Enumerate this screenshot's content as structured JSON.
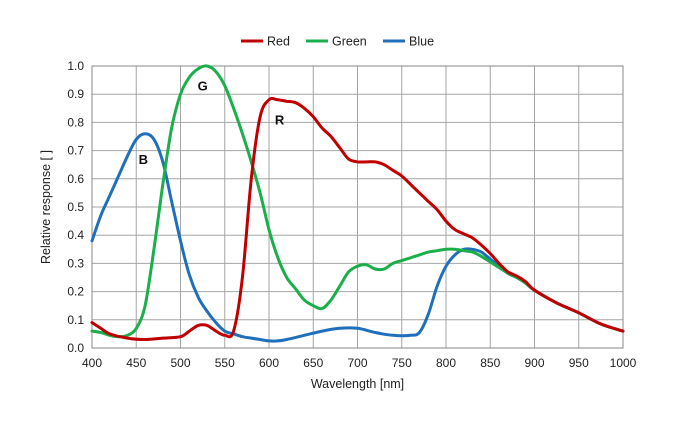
{
  "chart_data": {
    "type": "line",
    "title": "",
    "xlabel": "Wavelength [nm]",
    "ylabel": "Relative response [ ]",
    "xlim": [
      400,
      1000
    ],
    "ylim": [
      0,
      1.0
    ],
    "xticks": [
      400,
      450,
      500,
      550,
      600,
      650,
      700,
      750,
      800,
      850,
      900,
      950,
      1000
    ],
    "yticks": [
      0.0,
      0.1,
      0.2,
      0.3,
      0.4,
      0.5,
      0.6,
      0.7,
      0.8,
      0.9,
      1.0
    ],
    "xtick_labels": [
      "400",
      "450",
      "500",
      "550",
      "600",
      "650",
      "700",
      "750",
      "800",
      "850",
      "900",
      "950",
      "1000"
    ],
    "ytick_labels": [
      "0.0",
      "0.1",
      "0.2",
      "0.3",
      "0.4",
      "0.5",
      "0.6",
      "0.7",
      "0.8",
      "0.9",
      "1.0"
    ],
    "grid": true,
    "legend_position": "top-center",
    "series": [
      {
        "name": "Red",
        "color": "#c00000",
        "points": [
          [
            400,
            0.09
          ],
          [
            410,
            0.07
          ],
          [
            420,
            0.05
          ],
          [
            440,
            0.035
          ],
          [
            460,
            0.03
          ],
          [
            480,
            0.035
          ],
          [
            500,
            0.04
          ],
          [
            510,
            0.06
          ],
          [
            520,
            0.08
          ],
          [
            530,
            0.08
          ],
          [
            540,
            0.06
          ],
          [
            550,
            0.045
          ],
          [
            560,
            0.06
          ],
          [
            570,
            0.25
          ],
          [
            580,
            0.6
          ],
          [
            590,
            0.82
          ],
          [
            600,
            0.88
          ],
          [
            610,
            0.88
          ],
          [
            620,
            0.875
          ],
          [
            630,
            0.87
          ],
          [
            640,
            0.85
          ],
          [
            650,
            0.82
          ],
          [
            660,
            0.78
          ],
          [
            670,
            0.75
          ],
          [
            680,
            0.71
          ],
          [
            690,
            0.67
          ],
          [
            700,
            0.66
          ],
          [
            710,
            0.66
          ],
          [
            720,
            0.66
          ],
          [
            730,
            0.65
          ],
          [
            740,
            0.63
          ],
          [
            750,
            0.61
          ],
          [
            760,
            0.58
          ],
          [
            770,
            0.55
          ],
          [
            780,
            0.52
          ],
          [
            790,
            0.49
          ],
          [
            800,
            0.45
          ],
          [
            810,
            0.42
          ],
          [
            820,
            0.405
          ],
          [
            830,
            0.39
          ],
          [
            840,
            0.365
          ],
          [
            850,
            0.335
          ],
          [
            860,
            0.3
          ],
          [
            870,
            0.27
          ],
          [
            880,
            0.255
          ],
          [
            890,
            0.235
          ],
          [
            900,
            0.205
          ],
          [
            925,
            0.16
          ],
          [
            950,
            0.125
          ],
          [
            975,
            0.085
          ],
          [
            1000,
            0.06
          ]
        ]
      },
      {
        "name": "Green",
        "color": "#1aaf4b",
        "points": [
          [
            400,
            0.06
          ],
          [
            410,
            0.055
          ],
          [
            420,
            0.045
          ],
          [
            430,
            0.04
          ],
          [
            440,
            0.045
          ],
          [
            450,
            0.07
          ],
          [
            460,
            0.15
          ],
          [
            470,
            0.35
          ],
          [
            480,
            0.58
          ],
          [
            490,
            0.78
          ],
          [
            500,
            0.9
          ],
          [
            510,
            0.96
          ],
          [
            520,
            0.99
          ],
          [
            530,
            1.0
          ],
          [
            540,
            0.98
          ],
          [
            550,
            0.93
          ],
          [
            560,
            0.85
          ],
          [
            570,
            0.76
          ],
          [
            580,
            0.66
          ],
          [
            590,
            0.55
          ],
          [
            600,
            0.42
          ],
          [
            610,
            0.32
          ],
          [
            620,
            0.25
          ],
          [
            630,
            0.21
          ],
          [
            640,
            0.17
          ],
          [
            650,
            0.15
          ],
          [
            660,
            0.14
          ],
          [
            670,
            0.17
          ],
          [
            680,
            0.22
          ],
          [
            690,
            0.27
          ],
          [
            700,
            0.29
          ],
          [
            710,
            0.295
          ],
          [
            720,
            0.28
          ],
          [
            730,
            0.28
          ],
          [
            740,
            0.3
          ],
          [
            750,
            0.31
          ],
          [
            760,
            0.32
          ],
          [
            770,
            0.33
          ],
          [
            780,
            0.34
          ],
          [
            790,
            0.345
          ],
          [
            800,
            0.35
          ],
          [
            810,
            0.35
          ],
          [
            820,
            0.345
          ],
          [
            830,
            0.34
          ],
          [
            840,
            0.325
          ],
          [
            850,
            0.305
          ],
          [
            860,
            0.285
          ],
          [
            870,
            0.265
          ],
          [
            880,
            0.25
          ],
          [
            890,
            0.23
          ],
          [
            900,
            0.205
          ],
          [
            925,
            0.16
          ],
          [
            950,
            0.125
          ],
          [
            975,
            0.085
          ],
          [
            1000,
            0.06
          ]
        ]
      },
      {
        "name": "Blue",
        "color": "#1f6fba",
        "points": [
          [
            400,
            0.38
          ],
          [
            410,
            0.47
          ],
          [
            420,
            0.54
          ],
          [
            430,
            0.61
          ],
          [
            440,
            0.68
          ],
          [
            450,
            0.74
          ],
          [
            460,
            0.76
          ],
          [
            470,
            0.74
          ],
          [
            480,
            0.66
          ],
          [
            490,
            0.52
          ],
          [
            500,
            0.38
          ],
          [
            510,
            0.26
          ],
          [
            520,
            0.18
          ],
          [
            530,
            0.13
          ],
          [
            540,
            0.09
          ],
          [
            550,
            0.06
          ],
          [
            560,
            0.05
          ],
          [
            570,
            0.04
          ],
          [
            580,
            0.035
          ],
          [
            590,
            0.03
          ],
          [
            600,
            0.025
          ],
          [
            610,
            0.025
          ],
          [
            620,
            0.03
          ],
          [
            640,
            0.045
          ],
          [
            660,
            0.06
          ],
          [
            680,
            0.07
          ],
          [
            700,
            0.07
          ],
          [
            720,
            0.055
          ],
          [
            740,
            0.045
          ],
          [
            760,
            0.045
          ],
          [
            770,
            0.055
          ],
          [
            780,
            0.12
          ],
          [
            790,
            0.22
          ],
          [
            800,
            0.29
          ],
          [
            810,
            0.33
          ],
          [
            820,
            0.35
          ],
          [
            830,
            0.35
          ],
          [
            840,
            0.34
          ],
          [
            850,
            0.315
          ],
          [
            860,
            0.29
          ],
          [
            870,
            0.265
          ],
          [
            880,
            0.25
          ],
          [
            890,
            0.23
          ],
          [
            900,
            0.205
          ],
          [
            925,
            0.16
          ],
          [
            950,
            0.125
          ],
          [
            975,
            0.085
          ],
          [
            1000,
            0.06
          ]
        ]
      }
    ],
    "annotations": [
      {
        "text": "R",
        "x": 612,
        "y": 0.81
      },
      {
        "text": "G",
        "x": 525,
        "y": 0.93
      },
      {
        "text": "B",
        "x": 458,
        "y": 0.67
      }
    ]
  }
}
